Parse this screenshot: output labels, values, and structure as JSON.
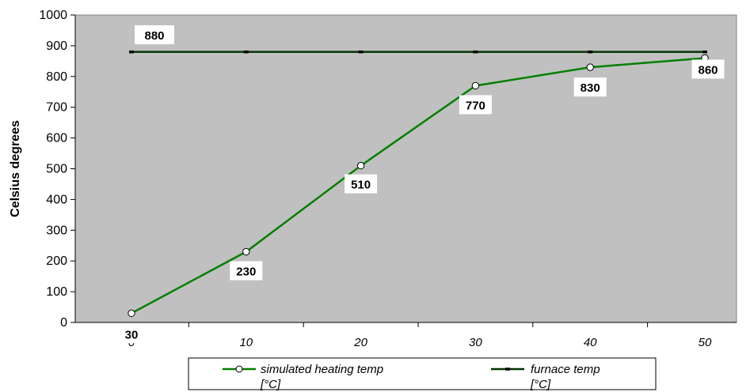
{
  "chart_data": {
    "type": "line",
    "x": [
      0,
      10,
      20,
      30,
      40,
      50
    ],
    "x_tick_labels": [
      "0",
      "10",
      "20",
      "30",
      "40",
      "50"
    ],
    "ylabel": "Celsius degrees",
    "xlabel": "",
    "ylim": [
      0,
      1000
    ],
    "y_ticks": [
      0,
      100,
      200,
      300,
      400,
      500,
      600,
      700,
      800,
      900,
      1000
    ],
    "grid": false,
    "legend_position": "bottom",
    "plot_background": "#c0c0c0",
    "series": [
      {
        "name": "simulated heating temp [°C]",
        "legend_line1": "simulated heating temp",
        "legend_line2": "[°C]",
        "values": [
          30,
          230,
          510,
          770,
          830,
          860
        ],
        "data_labels": [
          "30",
          "230",
          "510",
          "770",
          "830",
          "860"
        ],
        "color": "#008000",
        "marker": "open-circle"
      },
      {
        "name": "furnace temp [°C]",
        "legend_line1": "furnace temp",
        "legend_line2": "[°C]",
        "values": [
          880,
          880,
          880,
          880,
          880,
          880
        ],
        "data_labels": [
          "880"
        ],
        "color": "#003300",
        "marker": "dash"
      }
    ]
  }
}
